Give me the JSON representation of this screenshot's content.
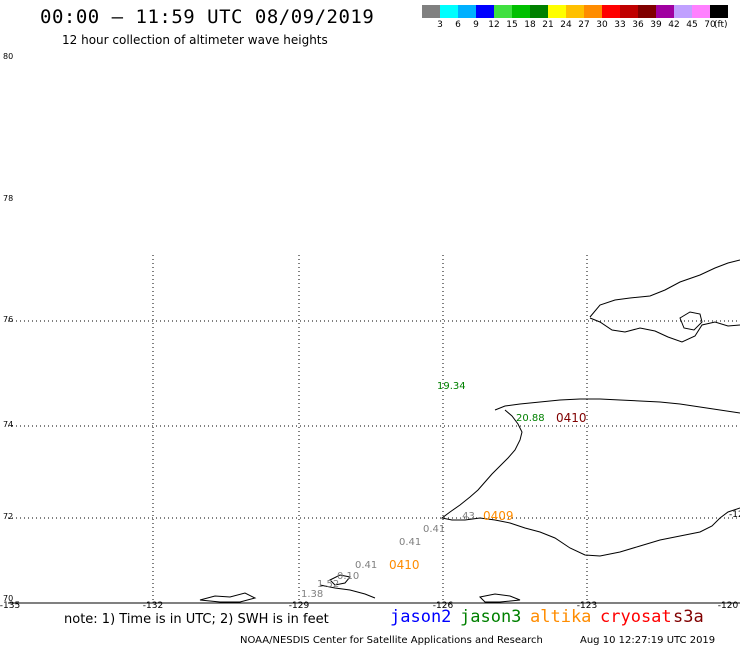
{
  "title": "00:00 – 11:59 UTC 08/09/2019",
  "subtitle": "12 hour collection of altimeter wave heights",
  "legend": {
    "unit": "(ft)",
    "bins": [
      {
        "label": "3",
        "color": "#808080"
      },
      {
        "label": "6",
        "color": "#00ffff"
      },
      {
        "label": "9",
        "color": "#00b0ff"
      },
      {
        "label": "12",
        "color": "#0000ff"
      },
      {
        "label": "15",
        "color": "#40e040"
      },
      {
        "label": "18",
        "color": "#00c000"
      },
      {
        "label": "21",
        "color": "#008000"
      },
      {
        "label": "24",
        "color": "#ffff00"
      },
      {
        "label": "27",
        "color": "#ffc000"
      },
      {
        "label": "30",
        "color": "#ff8c00"
      },
      {
        "label": "33",
        "color": "#ff0000"
      },
      {
        "label": "36",
        "color": "#c00000"
      },
      {
        "label": "39",
        "color": "#800000"
      },
      {
        "label": "42",
        "color": "#a000a0"
      },
      {
        "label": "45",
        "color": "#c0a0ff"
      },
      {
        "label": "70",
        "color": "#ff80ff"
      },
      {
        "label": "",
        "color": "#000000"
      }
    ]
  },
  "axes": {
    "lat_labels": [
      "80",
      "78",
      "76",
      "74",
      "72",
      "70"
    ],
    "lon_labels": [
      "-135",
      "-132",
      "-129",
      "-126",
      "-123",
      "-120"
    ],
    "edge_lon_label": "-12"
  },
  "wave_labels": [
    {
      "text": "19.34",
      "color": "#008000"
    },
    {
      "text": "20.88",
      "color": "#008000"
    },
    {
      "text": "0410",
      "color": "#800000"
    },
    {
      "text": "0409",
      "color": "#ff8c00"
    },
    {
      "text": "0410",
      "color": "#ff8c00"
    },
    {
      "text": "0.41",
      "color": "#808080"
    },
    {
      "text": "0.41",
      "color": "#808080"
    },
    {
      "text": "0.41",
      "color": "#808080"
    },
    {
      "text": "1.38",
      "color": "#808080"
    },
    {
      "text": "1.52",
      "color": "#808080"
    },
    {
      "text": ".43",
      "color": "#808080"
    },
    {
      "text": "0.10",
      "color": "#808080"
    }
  ],
  "note": "note: 1) Time is in UTC; 2) SWH is in feet",
  "satellites": [
    {
      "name": "jason2",
      "color": "#0000ff"
    },
    {
      "name": "jason3",
      "color": "#008000"
    },
    {
      "name": "altika",
      "color": "#ff8c00"
    },
    {
      "name": "cryosat",
      "color": "#ff0000"
    },
    {
      "name": "s3a",
      "color": "#800000"
    }
  ],
  "credit": "NOAA/NESDIS Center for Satellite Applications and Research",
  "timestamp": "Aug 10 12:27:19 UTC 2019"
}
